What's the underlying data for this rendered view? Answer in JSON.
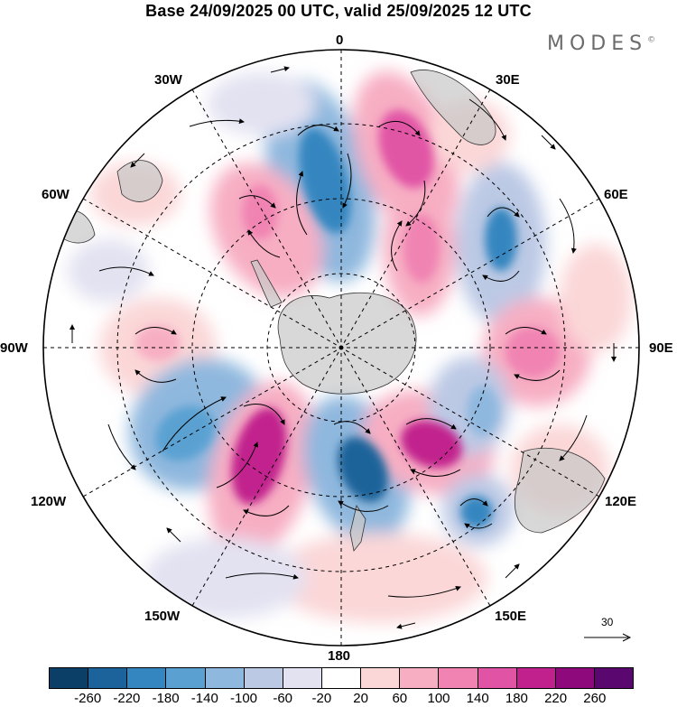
{
  "title": "Base 24/09/2025 00 UTC, valid 25/09/2025 12 UTC",
  "brand": "MODES",
  "brand_mark": "©",
  "longitude_labels": {
    "top": "0",
    "top_right": "30E",
    "right_upper": "60E",
    "right": "90E",
    "right_lower": "120E",
    "bottom_right": "150E",
    "bottom": "180",
    "bottom_left": "150W",
    "left_lower": "120W",
    "left": "90W",
    "left_upper": "60W",
    "top_left": "30W"
  },
  "reference_vector": "30",
  "colorbar": {
    "colors": [
      "#0c3f68",
      "#1b639a",
      "#3486c0",
      "#5aa1d2",
      "#8fb8de",
      "#bcc9e5",
      "#e3e2f1",
      "#ffffff",
      "#fbd7d8",
      "#f7aec3",
      "#f083b2",
      "#e154a5",
      "#c1218d",
      "#8e0a7c",
      "#5a0770"
    ],
    "ticks": [
      "-260",
      "-220",
      "-180",
      "-140",
      "-100",
      "-60",
      "-20",
      "20",
      "60",
      "100",
      "140",
      "180",
      "220",
      "260"
    ]
  }
}
